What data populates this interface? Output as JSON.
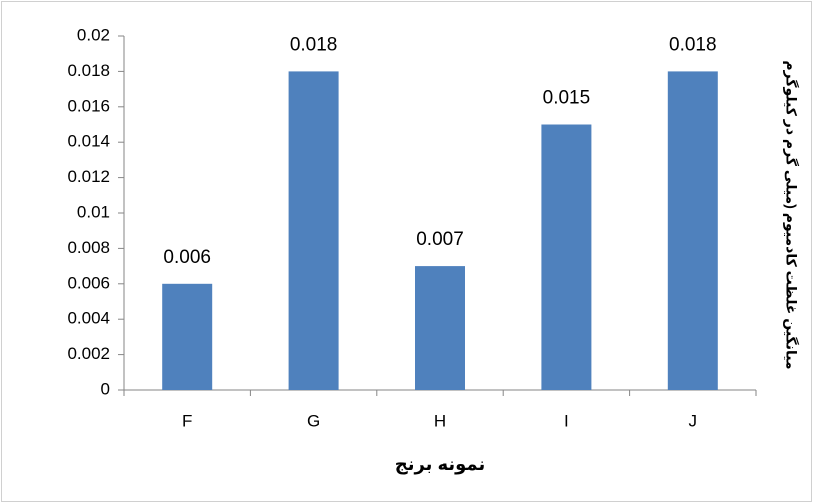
{
  "chart_data": {
    "type": "bar",
    "categories": [
      "F",
      "G",
      "H",
      "I",
      "J"
    ],
    "values": [
      0.006,
      0.018,
      0.007,
      0.015,
      0.018
    ],
    "color": "#4f81bd",
    "ylim": [
      0,
      0.02
    ],
    "yticks": [
      0,
      0.002,
      0.004,
      0.006,
      0.008,
      0.01,
      0.012,
      0.014,
      0.016,
      0.018,
      0.02
    ],
    "xlabel": "نمونه برنج",
    "ylabel": "میانگین غلظت کادمیوم (میلی گرم در کیلوگرم",
    "grid": false
  }
}
